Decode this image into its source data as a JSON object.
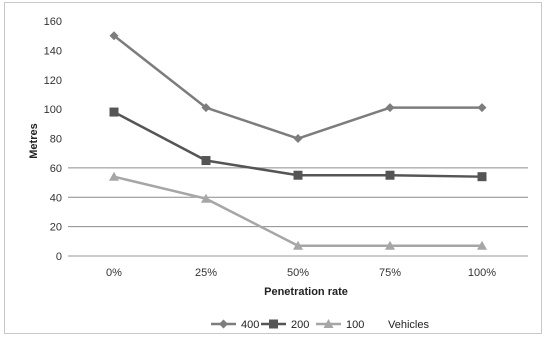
{
  "chart_data": {
    "type": "line",
    "x": [
      "0%",
      "25%",
      "50%",
      "75%",
      "100%"
    ],
    "xlabel": "Penetration rate",
    "ylabel": "Metres",
    "ylim": [
      0,
      160
    ],
    "yticks": [
      0,
      20,
      40,
      60,
      80,
      100,
      120,
      140,
      160
    ],
    "grid": "horizontal lines at 60, 40 and 20",
    "legend_position": "bottom",
    "legend_suffix": "Vehicles",
    "series": [
      {
        "name": "400",
        "values": [
          150,
          101,
          80,
          101,
          101
        ],
        "color": "#7d7d7d",
        "marker": "diamond"
      },
      {
        "name": "200",
        "values": [
          98,
          65,
          55,
          55,
          54
        ],
        "color": "#555555",
        "marker": "square"
      },
      {
        "name": "100",
        "values": [
          54,
          39,
          7,
          7,
          7
        ],
        "color": "#a6a6a6",
        "marker": "triangle"
      }
    ]
  }
}
